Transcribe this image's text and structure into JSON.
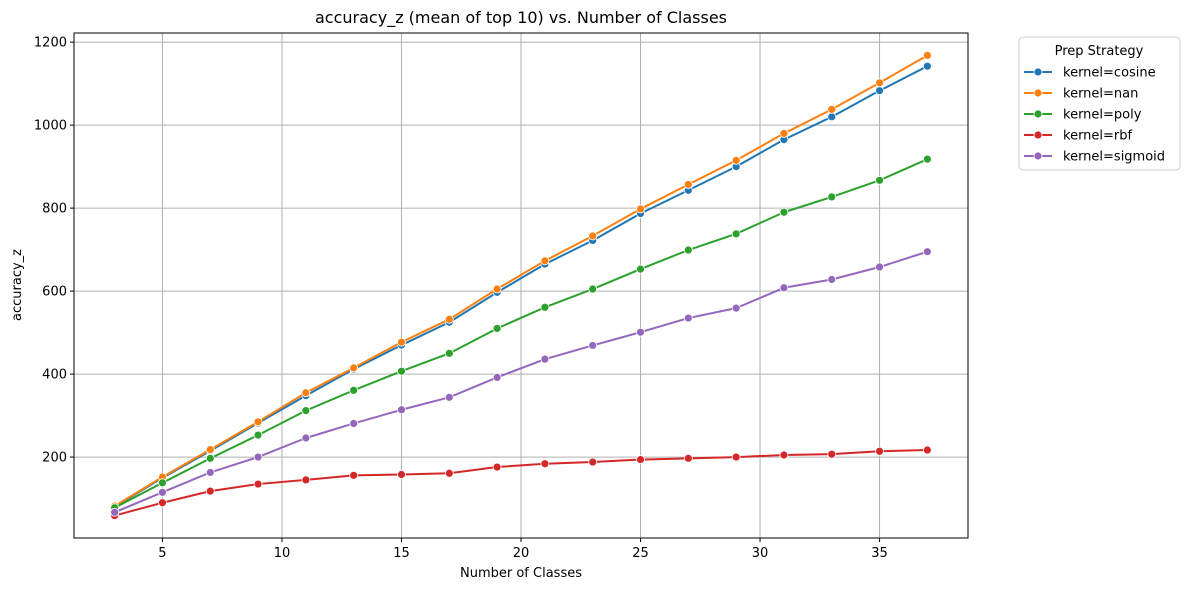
{
  "chart_data": {
    "type": "line",
    "title": "accuracy_z (mean of top 10) vs. Number of Classes",
    "xlabel": "Number of Classes",
    "ylabel": "accuracy_z",
    "xlim": [
      1.3,
      38.7
    ],
    "ylim": [
      5,
      1222
    ],
    "xticks": [
      5,
      10,
      15,
      20,
      25,
      30,
      35
    ],
    "yticks": [
      200,
      400,
      600,
      800,
      1000,
      1200
    ],
    "grid": true,
    "legend": {
      "title": "Prep Strategy",
      "placement": "outside-top-right"
    },
    "x": [
      3,
      5,
      7,
      9,
      11,
      13,
      15,
      17,
      19,
      21,
      23,
      25,
      27,
      29,
      31,
      33,
      35,
      37
    ],
    "series": [
      {
        "name": "kernel=cosine",
        "color": "#1f77b4",
        "values": [
          80,
          150,
          215,
          282,
          348,
          412,
          470,
          525,
          597,
          665,
          722,
          787,
          843,
          900,
          965,
          1020,
          1083,
          1142
        ]
      },
      {
        "name": "kernel=nan",
        "color": "#ff7f0e",
        "values": [
          82,
          152,
          218,
          285,
          355,
          415,
          477,
          532,
          605,
          673,
          733,
          798,
          857,
          915,
          980,
          1038,
          1102,
          1168
        ]
      },
      {
        "name": "kernel=poly",
        "color": "#2ca02c",
        "values": [
          78,
          138,
          197,
          253,
          312,
          361,
          407,
          450,
          510,
          561,
          605,
          653,
          699,
          738,
          790,
          827,
          867,
          918
        ]
      },
      {
        "name": "kernel=rbf",
        "color": "#d62728",
        "values": [
          59,
          90,
          118,
          135,
          145,
          156,
          158,
          161,
          176,
          184,
          188,
          194,
          197,
          200,
          205,
          207,
          214,
          217
        ]
      },
      {
        "name": "kernel=sigmoid",
        "color": "#9467bd",
        "values": [
          67,
          115,
          163,
          200,
          246,
          281,
          314,
          344,
          392,
          436,
          469,
          501,
          535,
          559,
          608,
          628,
          658,
          695
        ]
      }
    ]
  }
}
